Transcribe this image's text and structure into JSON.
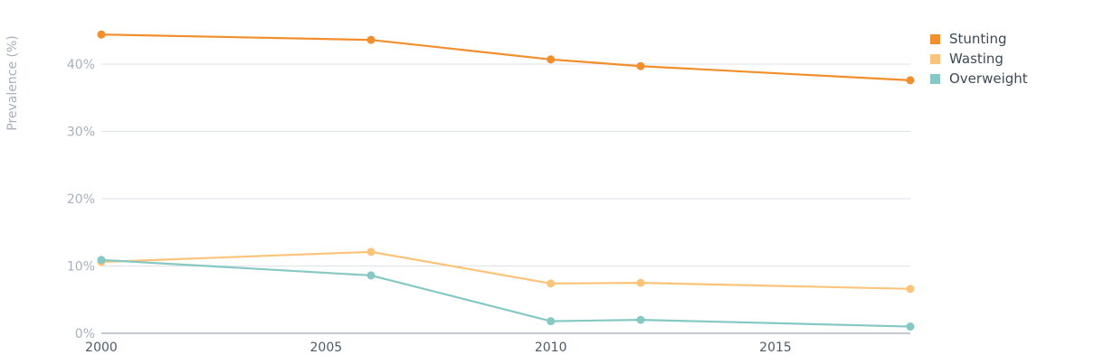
{
  "chart_data": {
    "type": "line",
    "ylabel": "Prevalence (%)",
    "xlabel": "",
    "xlim": [
      2000,
      2018
    ],
    "ylim": [
      0,
      45
    ],
    "x_ticks": [
      2000,
      2005,
      2010,
      2015
    ],
    "y_ticks": [
      0,
      10,
      20,
      30,
      40
    ],
    "y_tick_labels": [
      "0%",
      "10%",
      "20%",
      "30%",
      "40%"
    ],
    "grid": true,
    "legend_position": "top-right",
    "series": [
      {
        "name": "Stunting",
        "color": "#f28e2b",
        "points": [
          [
            2000,
            44.4
          ],
          [
            2006,
            43.6
          ],
          [
            2010,
            40.7
          ],
          [
            2012,
            39.7
          ],
          [
            2018,
            37.6
          ]
        ]
      },
      {
        "name": "Wasting",
        "color": "#fcc47a",
        "points": [
          [
            2000,
            10.6
          ],
          [
            2006,
            12.1
          ],
          [
            2010,
            7.4
          ],
          [
            2012,
            7.5
          ],
          [
            2018,
            6.6
          ]
        ]
      },
      {
        "name": "Overweight",
        "color": "#86c8c3",
        "points": [
          [
            2000,
            10.9
          ],
          [
            2006,
            8.6
          ],
          [
            2010,
            1.8
          ],
          [
            2012,
            2.0
          ],
          [
            2018,
            1.0
          ]
        ]
      }
    ]
  }
}
